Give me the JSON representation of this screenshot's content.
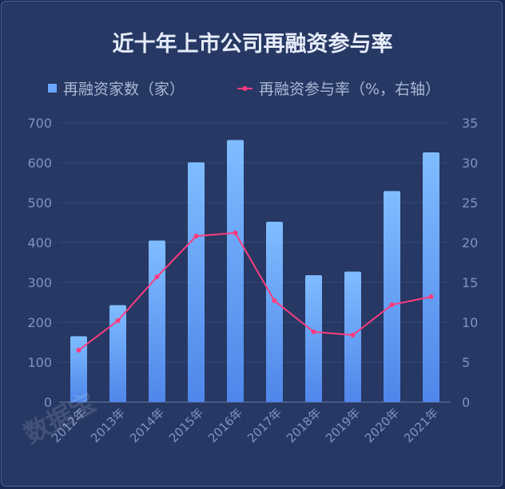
{
  "chart_data": {
    "type": "bar",
    "title": "近十年上市公司再融资参与率",
    "categories": [
      "2012年",
      "2013年",
      "2014年",
      "2015年",
      "2016年",
      "2017年",
      "2018年",
      "2019年",
      "2020年",
      "2021年"
    ],
    "series": [
      {
        "name": "再融资家数（家）",
        "type": "bar",
        "axis": "left",
        "color": "#6aa6ff",
        "values": [
          165,
          243,
          405,
          601,
          657,
          452,
          318,
          327,
          529,
          626
        ]
      },
      {
        "name": "再融资参与率（%，右轴）",
        "type": "line",
        "axis": "right",
        "color": "#ff3b7f",
        "values": [
          6.5,
          10.2,
          15.7,
          20.8,
          21.2,
          12.7,
          8.8,
          8.4,
          12.2,
          13.2
        ]
      }
    ],
    "ylim_left": [
      0,
      700
    ],
    "yticks_left": [
      "0",
      "100",
      "200",
      "300",
      "400",
      "500",
      "600",
      "700"
    ],
    "ylim_right": [
      0,
      35
    ],
    "yticks_right": [
      "0",
      "5",
      "10",
      "15",
      "20",
      "25",
      "30",
      "35"
    ],
    "grid": true,
    "legend": "top-center"
  },
  "watermark": "数据宝"
}
